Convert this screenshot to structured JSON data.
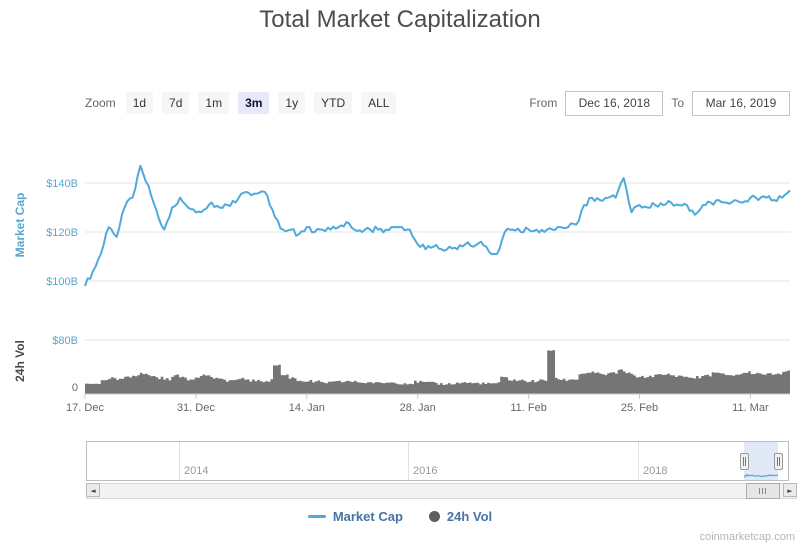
{
  "title": "Total Market Capitalization",
  "toolbar": {
    "zoom_label": "Zoom",
    "buttons": [
      "1d",
      "7d",
      "1m",
      "3m",
      "1y",
      "YTD",
      "ALL"
    ],
    "selected": "3m",
    "from_label": "From",
    "from_value": "Dec 16, 2018",
    "to_label": "To",
    "to_value": "Mar 16, 2019"
  },
  "chart_data": [
    {
      "type": "line",
      "name": "Market Cap",
      "ylabel": "Market Cap",
      "unit": "USD billions",
      "ylim": [
        95,
        150
      ],
      "yticks": [
        "$140B",
        "$120B",
        "$100B"
      ],
      "x_unit": "day",
      "xticklabels": [
        "17. Dec",
        "31. Dec",
        "14. Jan",
        "28. Jan",
        "11. Feb",
        "25. Feb",
        "11. Mar"
      ],
      "xtick_days": [
        0,
        14,
        28,
        42,
        56,
        70,
        84
      ],
      "values": [
        98,
        104,
        111,
        122,
        118,
        130,
        134,
        147,
        139,
        129,
        121,
        130,
        134,
        130,
        128,
        129,
        132,
        130,
        131,
        132,
        136,
        135,
        136,
        135,
        126,
        121,
        121,
        119,
        122,
        120,
        121,
        121,
        122,
        124,
        121,
        120,
        121,
        121,
        121,
        122,
        122,
        121,
        115,
        113,
        114,
        113,
        114,
        113,
        115,
        114,
        116,
        112,
        111,
        120,
        121,
        120,
        121,
        121,
        120,
        121,
        122,
        122,
        123,
        131,
        134,
        133,
        134,
        134,
        142,
        128,
        131,
        130,
        131,
        131,
        132,
        131,
        131,
        127,
        131,
        132,
        133,
        132,
        133,
        132,
        134,
        133,
        134,
        133,
        134,
        137
      ]
    },
    {
      "type": "area",
      "name": "24h Vol",
      "ylabel": "24h Vol",
      "unit": "USD billions",
      "ylim": [
        0,
        80
      ],
      "yticks": [
        "$80B",
        "0"
      ],
      "values": [
        15,
        16,
        19,
        23,
        21,
        26,
        28,
        30,
        27,
        24,
        22,
        27,
        25,
        22,
        26,
        28,
        24,
        21,
        20,
        21,
        22,
        20,
        19,
        20,
        43,
        28,
        24,
        20,
        19,
        18,
        17,
        17,
        18,
        19,
        18,
        17,
        17,
        16,
        17,
        17,
        16,
        16,
        18,
        17,
        16,
        15,
        15,
        16,
        17,
        16,
        16,
        15,
        16,
        24,
        21,
        20,
        19,
        19,
        20,
        65,
        22,
        21,
        22,
        30,
        32,
        30,
        29,
        31,
        35,
        30,
        26,
        25,
        27,
        28,
        29,
        27,
        26,
        24,
        25,
        28,
        31,
        29,
        28,
        29,
        32,
        31,
        30,
        29,
        31,
        33
      ]
    }
  ],
  "navigator": {
    "year_labels": [
      "2014",
      "2016",
      "2018"
    ]
  },
  "scrollbar": {
    "left_arrow": "◄",
    "right_arrow": "►"
  },
  "legend": {
    "items": [
      {
        "label": "Market Cap",
        "marker": "line",
        "color": "#4FA9DB"
      },
      {
        "label": "24h Vol",
        "marker": "circle",
        "color": "#5E5E5E"
      }
    ]
  },
  "footer": {
    "credit": "coinmarketcap.com"
  },
  "colors": {
    "line": "#4FA9DB",
    "axis_blue": "#58A7CF",
    "volume": "#757575",
    "grid": "#E6E6E6",
    "axis_line": "#C9C9C9",
    "tick_text": "#666666",
    "selected_button_bg": "#E6E9F8",
    "navigator_mask": "rgba(102,144,205,0.20)",
    "legend_text": "#4673A3",
    "credit_text": "#B5B5B5"
  }
}
